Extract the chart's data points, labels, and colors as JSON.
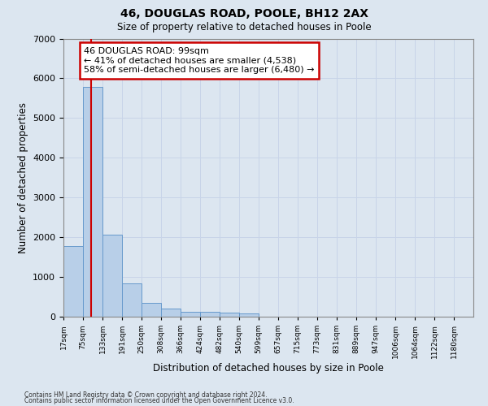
{
  "title1": "46, DOUGLAS ROAD, POOLE, BH12 2AX",
  "title2": "Size of property relative to detached houses in Poole",
  "xlabel": "Distribution of detached houses by size in Poole",
  "ylabel": "Number of detached properties",
  "bar_labels": [
    "17sqm",
    "75sqm",
    "133sqm",
    "191sqm",
    "250sqm",
    "308sqm",
    "366sqm",
    "424sqm",
    "482sqm",
    "540sqm",
    "599sqm",
    "657sqm",
    "715sqm",
    "773sqm",
    "831sqm",
    "889sqm",
    "947sqm",
    "1006sqm",
    "1064sqm",
    "1122sqm",
    "1180sqm"
  ],
  "bar_values": [
    1780,
    5790,
    2060,
    830,
    340,
    195,
    120,
    115,
    105,
    75,
    0,
    0,
    0,
    0,
    0,
    0,
    0,
    0,
    0,
    0,
    0
  ],
  "bar_color": "#b8cfe8",
  "bar_edge_color": "#6699cc",
  "vline_color": "#cc0000",
  "vline_pos": 1.41,
  "annotation_text": "46 DOUGLAS ROAD: 99sqm\n← 41% of detached houses are smaller (4,538)\n58% of semi-detached houses are larger (6,480) →",
  "annotation_box_color": "#ffffff",
  "annotation_box_edge": "#cc0000",
  "ylim": [
    0,
    7000
  ],
  "yticks": [
    0,
    1000,
    2000,
    3000,
    4000,
    5000,
    6000,
    7000
  ],
  "grid_color": "#c8d4e8",
  "bg_color": "#dce6f0",
  "footer1": "Contains HM Land Registry data © Crown copyright and database right 2024.",
  "footer2": "Contains public sector information licensed under the Open Government Licence v3.0."
}
